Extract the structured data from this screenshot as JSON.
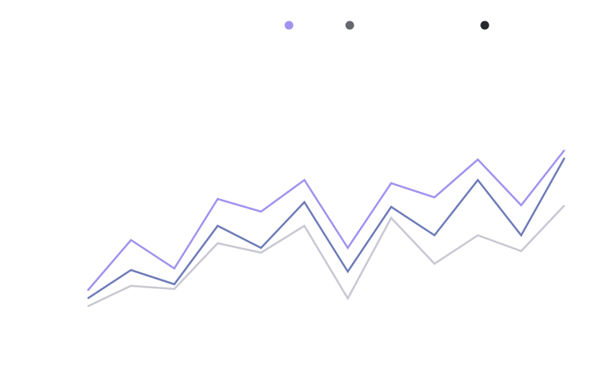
{
  "chart_data": {
    "type": "line",
    "title": "",
    "xlabel": "",
    "ylabel": "",
    "grid": false,
    "legend_position": "top",
    "x": [
      1,
      2,
      3,
      4,
      5,
      6,
      7,
      8,
      9,
      10,
      11,
      12
    ],
    "ylim": [
      0,
      100
    ],
    "series": [
      {
        "color": "#a192ee",
        "values": [
          21,
          53,
          35,
          79,
          71,
          91,
          48,
          89,
          80,
          104,
          75,
          110
        ]
      },
      {
        "color": "#6e7bb8",
        "values": [
          16,
          34,
          25,
          62,
          48,
          77,
          33,
          74,
          56,
          91,
          56,
          105
        ]
      },
      {
        "color": "#c8c8d2",
        "values": [
          11,
          24,
          22,
          51,
          45,
          62,
          16,
          67,
          38,
          56,
          46,
          75
        ]
      }
    ],
    "legend_markers": [
      {
        "color": "#a192ee"
      },
      {
        "color": "#67676f"
      },
      {
        "color": "#27272e"
      }
    ]
  }
}
